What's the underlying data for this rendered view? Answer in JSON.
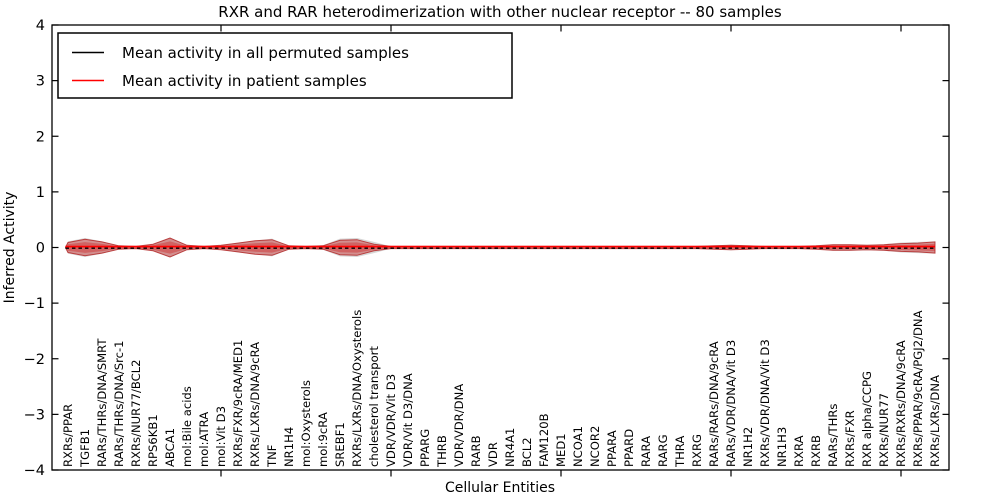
{
  "chart_data": {
    "type": "area",
    "subtype": "violin-band",
    "title": "RXR and RAR heterodimerization with other nuclear receptor -- 80 samples",
    "xlabel": "Cellular Entities",
    "ylabel": "Inferred Activity",
    "ylim": [
      -4,
      4
    ],
    "yticks": [
      4,
      3,
      2,
      1,
      0,
      -1,
      -2,
      -3,
      -4
    ],
    "x_major_tick_positions": [
      10,
      20,
      30,
      40,
      50
    ],
    "grid": false,
    "legend_position": "upper left",
    "categories": [
      "RXRs/PPAR",
      "TGFB1",
      "RARs/THRs/DNA/SMRT",
      "RARs/THRs/DNA/Src-1",
      "RXRs/NUR77/BCL2",
      "RPS6KB1",
      "ABCA1",
      "mol:Bile acids",
      "mol:ATRA",
      "mol:Vit D3",
      "RXRs/FXR/9cRA/MED1",
      "RXRs/LXRs/DNA/9cRA",
      "TNF",
      "NR1H4",
      "mol:Oxysterols",
      "mol:9cRA",
      "SREBF1",
      "RXRs/LXRs/DNA/Oxysterols",
      "cholesterol transport",
      "VDR/VDR/Vit D3",
      "VDR/Vit D3/DNA",
      "PPARG",
      "THRB",
      "VDR/VDR/DNA",
      "RARB",
      "VDR",
      "NR4A1",
      "BCL2",
      "FAM120B",
      "MED1",
      "NCOA1",
      "NCOR2",
      "PPARA",
      "PPARD",
      "RARA",
      "RARG",
      "THRA",
      "RXRG",
      "RARs/RARs/DNA/9cRA",
      "RARs/VDR/DNA/Vit D3",
      "NR1H2",
      "RXRs/VDR/DNA/Vit D3",
      "NR1H3",
      "RXRA",
      "RXRB",
      "RARs/THRs",
      "RXRs/FXR",
      "RXR alpha/CCPG",
      "RXRs/NUR77",
      "RXRs/RXRs/DNA/9cRA",
      "RXRs/PPAR/9cRA/PGJ2/DNA",
      "RXRs/LXRs/DNA"
    ],
    "series": [
      {
        "name": "Mean activity in all permuted samples",
        "line_color": "#000000",
        "line_style": "dashed",
        "mean_activity": 0.0,
        "band_fill": "#9a9a9a",
        "half_widths": [
          0.11,
          0.17,
          0.11,
          0.03,
          0.02,
          0.06,
          0.18,
          0.04,
          0.02,
          0.04,
          0.09,
          0.12,
          0.16,
          0.03,
          0.02,
          0.04,
          0.16,
          0.17,
          0.1,
          0.02,
          0.02,
          0.02,
          0.02,
          0.02,
          0.02,
          0.02,
          0.02,
          0.02,
          0.02,
          0.02,
          0.02,
          0.02,
          0.02,
          0.02,
          0.02,
          0.02,
          0.02,
          0.02,
          0.03,
          0.05,
          0.03,
          0.02,
          0.02,
          0.02,
          0.03,
          0.06,
          0.06,
          0.05,
          0.06,
          0.09,
          0.1,
          0.11
        ]
      },
      {
        "name": "Mean activity in patient samples",
        "line_color": "#ff0000",
        "line_style": "solid",
        "mean_activity": 0.0,
        "band_fill": "#cc2929",
        "band_edge": "#b22222",
        "half_widths": [
          0.09,
          0.15,
          0.1,
          0.03,
          0.02,
          0.06,
          0.17,
          0.04,
          0.02,
          0.04,
          0.08,
          0.12,
          0.14,
          0.03,
          0.02,
          0.03,
          0.13,
          0.14,
          0.06,
          0.02,
          0.02,
          0.02,
          0.02,
          0.02,
          0.02,
          0.02,
          0.02,
          0.02,
          0.02,
          0.02,
          0.02,
          0.02,
          0.02,
          0.02,
          0.02,
          0.02,
          0.02,
          0.02,
          0.03,
          0.04,
          0.03,
          0.02,
          0.02,
          0.02,
          0.03,
          0.05,
          0.05,
          0.04,
          0.05,
          0.07,
          0.08,
          0.1
        ]
      }
    ]
  }
}
